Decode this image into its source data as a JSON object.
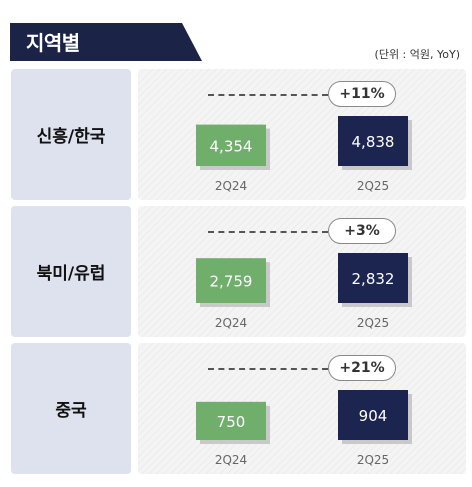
{
  "title": "지역별",
  "unit_note": "(단위 : 억원, YoY)",
  "colors": {
    "banner": "#1b2447",
    "prior": "#6fae6b",
    "current": "#1b2550",
    "region_bg": "#dde2ee"
  },
  "chart_data": [
    {
      "type": "bar",
      "region": "신흥/한국",
      "categories": [
        "2Q24",
        "2Q25"
      ],
      "values": [
        4354,
        4838
      ],
      "value_labels": [
        "4,354",
        "4,838"
      ],
      "growth": "+11%"
    },
    {
      "type": "bar",
      "region": "북미/유럽",
      "categories": [
        "2Q24",
        "2Q25"
      ],
      "values": [
        2759,
        2832
      ],
      "value_labels": [
        "2,759",
        "2,832"
      ],
      "growth": "+3%"
    },
    {
      "type": "bar",
      "region": "중국",
      "categories": [
        "2Q24",
        "2Q25"
      ],
      "values": [
        750,
        904
      ],
      "value_labels": [
        "750",
        "904"
      ],
      "growth": "+21%"
    }
  ]
}
